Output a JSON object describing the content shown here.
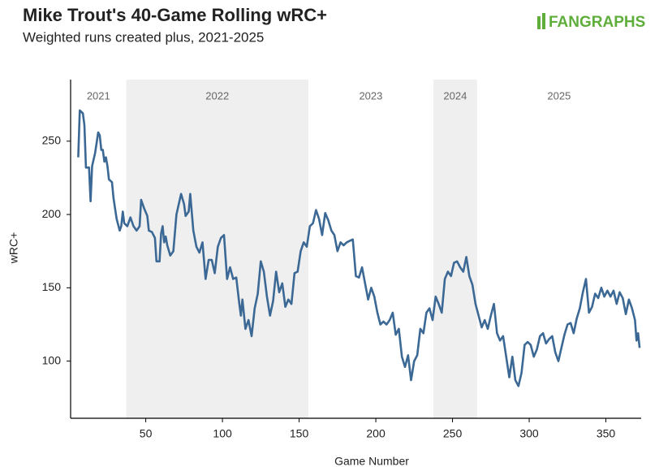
{
  "chart_data": {
    "type": "line",
    "title": "Mike Trout's 40-Game Rolling wRC+",
    "subtitle": "Weighted runs created plus, 2021-2025",
    "logo": "FANGRAPHS",
    "x_label": "Game Number",
    "y_label": "wRC+",
    "xlim": [
      1,
      373
    ],
    "ylim": [
      61,
      292
    ],
    "xticks": [
      50,
      100,
      150,
      200,
      250,
      300,
      350
    ],
    "yticks": [
      100,
      150,
      200,
      250
    ],
    "seasons": [
      {
        "label": "2021",
        "start": 1,
        "end": 37.3,
        "shaded": false
      },
      {
        "label": "2022",
        "start": 37.3,
        "end": 156,
        "shaded": true
      },
      {
        "label": "2023",
        "start": 156,
        "end": 237.5,
        "shaded": false
      },
      {
        "label": "2024",
        "start": 237.5,
        "end": 266,
        "shaded": true
      },
      {
        "label": "2025",
        "start": 266,
        "end": 373,
        "shaded": false
      }
    ],
    "x": [
      6,
      7,
      9,
      10,
      11,
      13,
      14,
      15,
      17,
      19,
      20,
      21,
      22,
      23,
      24,
      25,
      26,
      28,
      29,
      31,
      33,
      34,
      35,
      36,
      38,
      40,
      42,
      44,
      46,
      47,
      49,
      51,
      52,
      54,
      56,
      57,
      59,
      60,
      61,
      62,
      63,
      64,
      66,
      68,
      70,
      73,
      75,
      76,
      78,
      79,
      81,
      83,
      85,
      87,
      89,
      91,
      93,
      95,
      97,
      99,
      101,
      103,
      105,
      107,
      109,
      111,
      112,
      113,
      115,
      117,
      119,
      121,
      123,
      125,
      127,
      129,
      131,
      133,
      135,
      137,
      139,
      141,
      143,
      145,
      147,
      149,
      151,
      153,
      155,
      157,
      159,
      161,
      163,
      165,
      167,
      169,
      171,
      173,
      175,
      177,
      179,
      181,
      183,
      185,
      187,
      189,
      191,
      193,
      195,
      197,
      199,
      201,
      203,
      205,
      207,
      209,
      211,
      213,
      215,
      217,
      219,
      221,
      223,
      225,
      227,
      229,
      231,
      233,
      235,
      237,
      239,
      241,
      243,
      245,
      247,
      249,
      251,
      253,
      255,
      257,
      259,
      261,
      263,
      265,
      267,
      269,
      271,
      273,
      275,
      277,
      279,
      281,
      283,
      285,
      287,
      289,
      291,
      293,
      295,
      297,
      299,
      301,
      303,
      305,
      307,
      309,
      311,
      313,
      315,
      317,
      319,
      321,
      323,
      325,
      327,
      329,
      331,
      333,
      335,
      337,
      339,
      341,
      343,
      345,
      347,
      349,
      351,
      353,
      355,
      357,
      359,
      361,
      363,
      365,
      367,
      369,
      370,
      371,
      372
    ],
    "series": [
      {
        "name": "wRC+",
        "color": "#3b6894",
        "values": [
          239,
          271,
          269,
          261,
          232,
          232,
          209,
          233,
          242,
          256,
          254,
          244,
          244,
          236,
          239,
          233,
          224,
          222,
          211,
          197,
          189,
          192,
          202,
          194,
          192,
          198,
          192,
          189,
          192,
          210,
          204,
          199,
          189,
          188,
          184,
          168,
          168,
          187,
          192,
          181,
          185,
          179,
          172,
          175,
          200,
          214,
          207,
          199,
          202,
          214,
          189,
          178,
          174,
          181,
          156,
          169,
          169,
          160,
          178,
          184,
          186,
          156,
          164,
          156,
          157,
          139,
          131,
          142,
          122,
          128,
          117,
          136,
          146,
          168,
          161,
          144,
          131,
          141,
          161,
          147,
          153,
          137,
          142,
          139,
          160,
          161,
          175,
          181,
          178,
          192,
          194,
          203,
          197,
          186,
          201,
          196,
          189,
          186,
          175,
          181,
          179,
          181,
          182,
          183,
          158,
          157,
          164,
          153,
          142,
          150,
          144,
          133,
          125,
          127,
          125,
          128,
          133,
          118,
          122,
          103,
          96,
          104,
          87,
          100,
          104,
          122,
          119,
          133,
          136,
          128,
          144,
          139,
          133,
          156,
          161,
          158,
          167,
          168,
          164,
          161,
          171,
          158,
          152,
          139,
          131,
          123,
          128,
          122,
          131,
          139,
          119,
          114,
          117,
          103,
          89,
          103,
          87,
          83,
          92,
          111,
          113,
          111,
          103,
          108,
          117,
          119,
          112,
          115,
          117,
          106,
          100,
          109,
          118,
          125,
          126,
          119,
          129,
          136,
          147,
          156,
          133,
          137,
          146,
          143,
          150,
          144,
          148,
          144,
          148,
          139,
          147,
          143,
          132,
          142,
          136,
          128,
          114,
          119,
          109
        ]
      }
    ]
  }
}
